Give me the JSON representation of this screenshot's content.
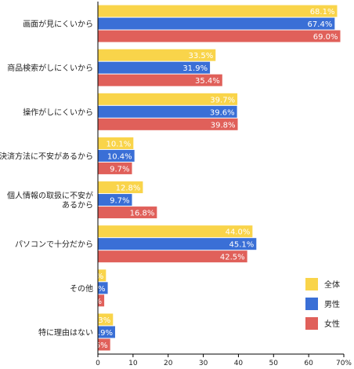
{
  "chart_data": {
    "type": "bar",
    "orientation": "horizontal",
    "categories": [
      "画面が見にくいから",
      "商品検索がしにくいから",
      "操作がしにくいから",
      "決済方法に不安があるから",
      "個人情報の取扱に不安があるから",
      "パソコンで十分だから",
      "その他",
      "特に理由はない"
    ],
    "category_lines": [
      [
        "画面が見にくいから"
      ],
      [
        "商品検索がしにくいから"
      ],
      [
        "操作がしにくいから"
      ],
      [
        "決済方法に不安があるから"
      ],
      [
        "個人情報の取扱に不安が",
        "あるから"
      ],
      [
        "パソコンで十分だから"
      ],
      [
        "その他"
      ],
      [
        "特に理由はない"
      ]
    ],
    "series": [
      {
        "name": "全体",
        "color": "#f9d44a",
        "values": [
          68.1,
          33.5,
          39.7,
          10.1,
          12.8,
          44.0,
          2.3,
          4.3
        ]
      },
      {
        "name": "男性",
        "color": "#3a6fd6",
        "values": [
          67.4,
          31.9,
          39.6,
          10.4,
          9.7,
          45.1,
          2.8,
          4.9
        ]
      },
      {
        "name": "女性",
        "color": "#e0605a",
        "values": [
          69.0,
          35.4,
          39.8,
          9.7,
          16.8,
          42.5,
          1.8,
          3.5
        ]
      }
    ],
    "xlim": [
      0,
      70
    ],
    "xticks": [
      "0",
      "10",
      "20",
      "30",
      "40",
      "50",
      "60",
      "70%"
    ],
    "grid": false,
    "legend_position": "bottom-right",
    "title": "",
    "xlabel": "",
    "ylabel": ""
  }
}
